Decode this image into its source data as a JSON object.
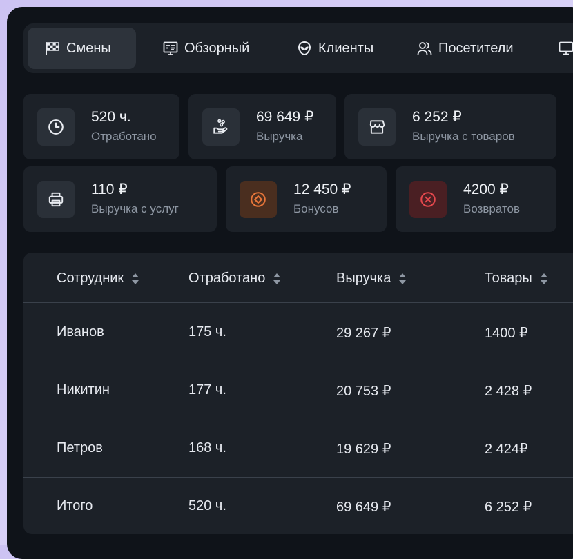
{
  "tabs": [
    {
      "label": "Смены",
      "icon": "checkered-flag-icon",
      "active": true
    },
    {
      "label": "Обзорный",
      "icon": "presentation-board-icon"
    },
    {
      "label": "Клиенты",
      "icon": "alien-face-icon"
    },
    {
      "label": "Посетители",
      "icon": "users-icon"
    },
    {
      "label": "",
      "icon": "monitor-icon"
    }
  ],
  "stats": [
    {
      "value": "520 ч.",
      "label": "Отработано",
      "icon": "clock-icon"
    },
    {
      "value": "69 649 ₽",
      "label": "Выручка",
      "icon": "hand-coins-icon"
    },
    {
      "value": "6 252 ₽",
      "label": "Выручка с товаров",
      "icon": "store-icon"
    },
    {
      "value": "110 ₽",
      "label": "Выручка с услуг",
      "icon": "printer-icon"
    },
    {
      "value": "12 450 ₽",
      "label": "Бонусов",
      "icon": "bonus-diamond-icon"
    },
    {
      "value": "4200 ₽",
      "label": "Возвратов",
      "icon": "close-circle-icon"
    }
  ],
  "colors": {
    "orange": "#e8763a",
    "red": "#e5484d",
    "card": "#1c2128",
    "background": "#0f1319"
  },
  "table": {
    "headers": [
      "Сотрудник",
      "Отработано",
      "Выручка",
      "Товары"
    ],
    "rows": [
      [
        "Иванов",
        "175 ч.",
        "29 267 ₽",
        "1400 ₽"
      ],
      [
        "Никитин",
        "177 ч.",
        "20 753 ₽",
        "2 428 ₽"
      ],
      [
        "Петров",
        "168 ч.",
        "19 629 ₽",
        "2 424₽"
      ]
    ],
    "total": [
      "Итого",
      "520 ч.",
      "69 649 ₽",
      "6 252 ₽"
    ]
  }
}
